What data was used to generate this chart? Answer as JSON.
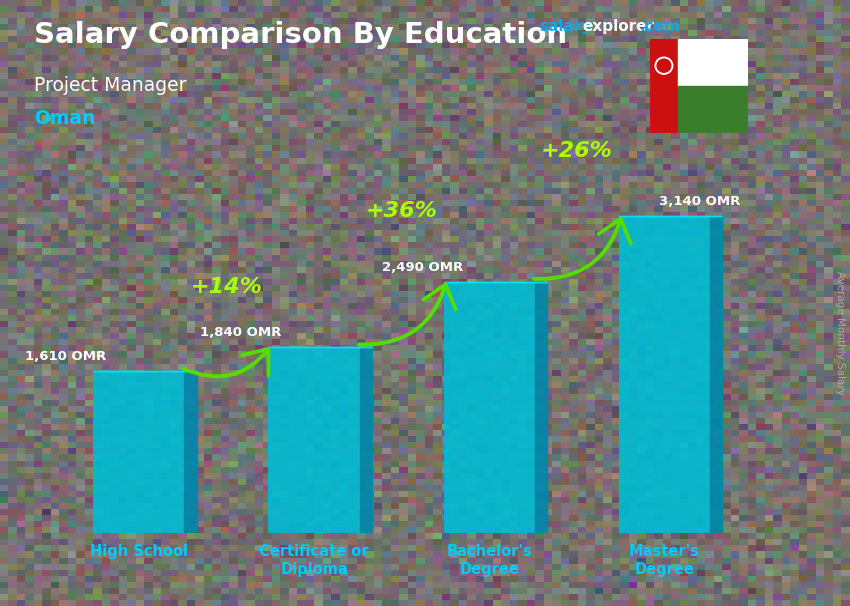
{
  "title_main": "Salary Comparison By Education",
  "title_sub": "Project Manager",
  "title_location": "Oman",
  "categories": [
    "High School",
    "Certificate or\nDiploma",
    "Bachelor's\nDegree",
    "Master's\nDegree"
  ],
  "values": [
    1610,
    1840,
    2490,
    3140
  ],
  "value_labels": [
    "1,610 OMR",
    "1,840 OMR",
    "2,490 OMR",
    "3,140 OMR"
  ],
  "pct_labels": [
    "+14%",
    "+36%",
    "+26%"
  ],
  "bar_color_face": "#00bcd4",
  "bar_color_side": "#0088aa",
  "bar_color_top": "#00e5ff",
  "arrow_color": "#55dd00",
  "pct_color": "#aaff00",
  "title_color": "#ffffff",
  "sub_title_color": "#ffffff",
  "location_color": "#00ccff",
  "value_label_color": "#ffffff",
  "site_color_salary": "#00aaff",
  "site_color_explorer": "#ffffff",
  "site_color_com": "#00aaff",
  "bg_color": "#888888",
  "ylabel_text": "Average Monthly Salary",
  "ylabel_color": "#aaaaaa",
  "ylim": [
    0,
    4200
  ],
  "bar_width": 0.52,
  "bar_depth": 0.07
}
